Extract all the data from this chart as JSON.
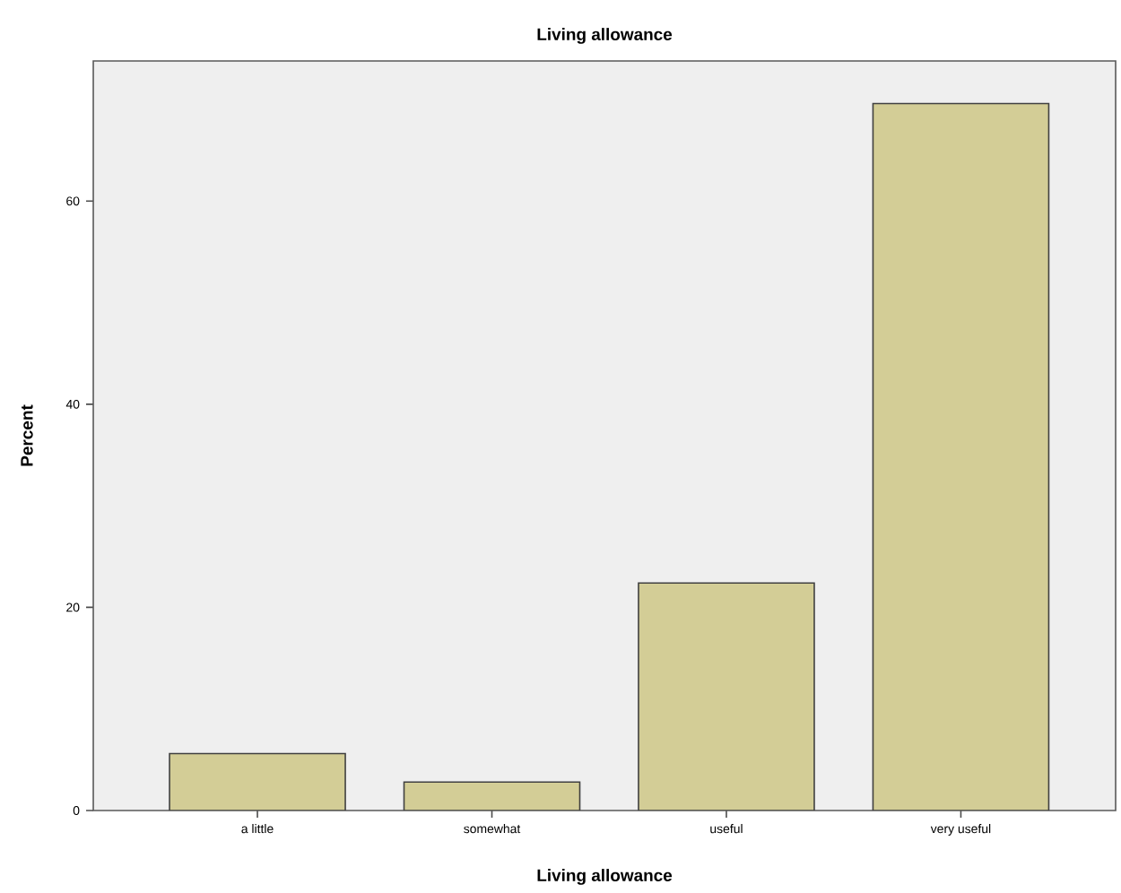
{
  "chart_data": {
    "type": "bar",
    "title": "Living allowance",
    "xlabel": "Living allowance",
    "ylabel": "Percent",
    "categories": [
      "a little",
      "somewhat",
      "useful",
      "very useful"
    ],
    "values": [
      5.6,
      2.8,
      22.4,
      69.6
    ],
    "color": "#d3cd96",
    "ylim": [
      0,
      73.8
    ],
    "yticks": [
      0,
      20,
      40,
      60
    ],
    "grid": false
  }
}
